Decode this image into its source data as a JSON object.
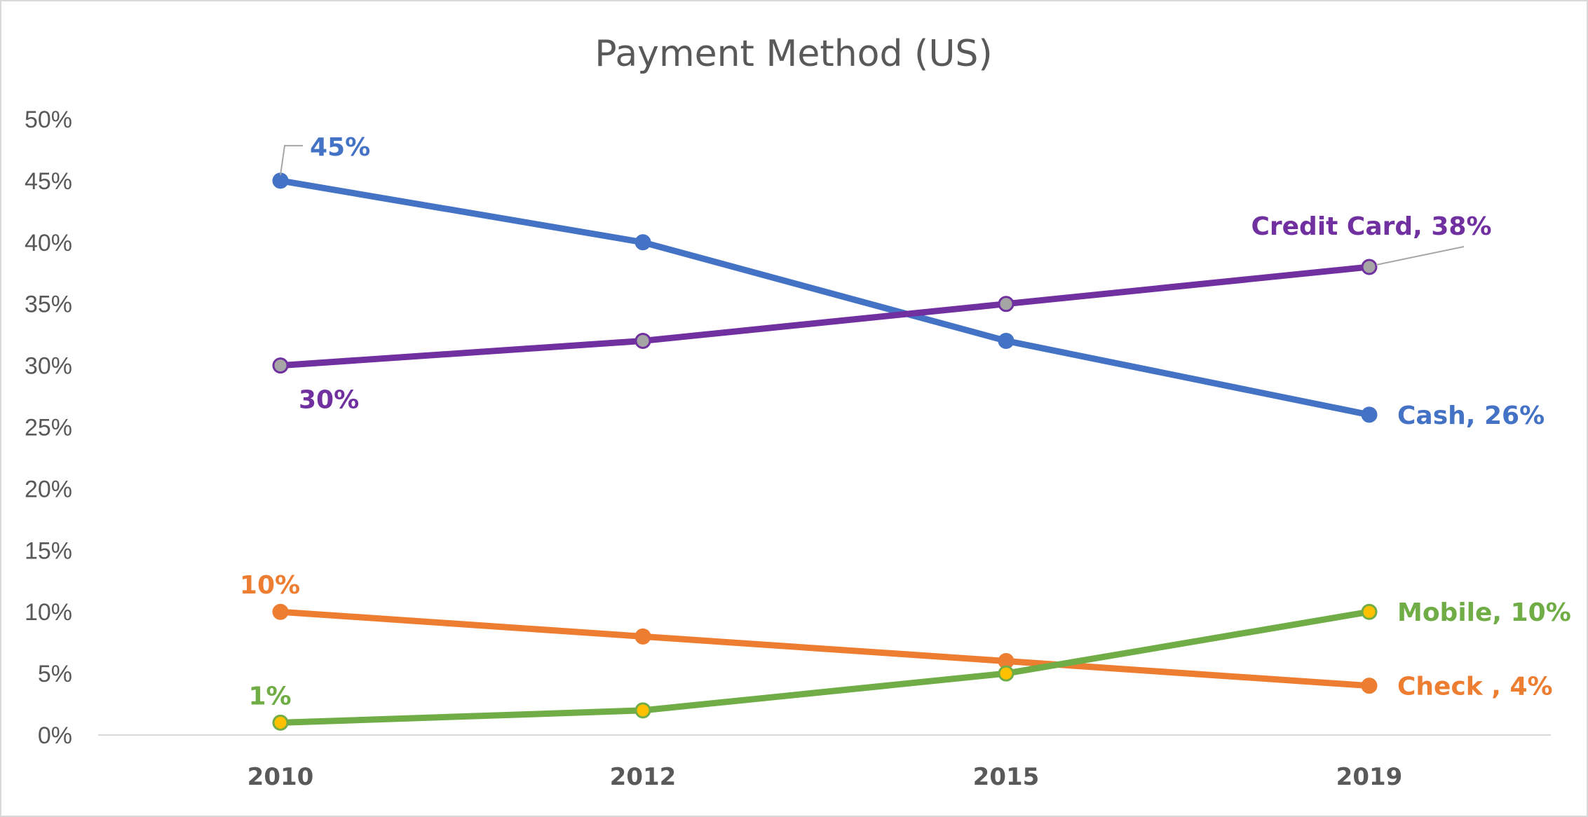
{
  "chart_data": {
    "type": "line",
    "title": "Payment Method (US)",
    "xlabel": "",
    "ylabel": "",
    "categories": [
      "2010",
      "2012",
      "2015",
      "2019"
    ],
    "ylim": [
      0,
      50
    ],
    "yticks": [
      0,
      5,
      10,
      15,
      20,
      25,
      30,
      35,
      40,
      45,
      50
    ],
    "ytick_labels": [
      "0%",
      "5%",
      "10%",
      "15%",
      "20%",
      "25%",
      "30%",
      "35%",
      "40%",
      "45%",
      "50%"
    ],
    "grid": false,
    "legend": "none",
    "series": [
      {
        "key": "cash",
        "values": [
          45,
          40,
          32,
          26
        ],
        "color": "#4472c4",
        "marker_fill": "#4472c4",
        "marker_stroke": "#4472c4",
        "labels": [
          {
            "index": 0,
            "text": "45%",
            "position": "above-right",
            "leader": true
          },
          {
            "index": 3,
            "text": "Cash, 26%",
            "position": "right"
          }
        ]
      },
      {
        "key": "credit-card",
        "values": [
          30,
          32,
          35,
          38
        ],
        "color": "#7030a0",
        "marker_fill": "#a5a5a5",
        "marker_stroke": "#7030a0",
        "labels": [
          {
            "index": 0,
            "text": "30%",
            "position": "below-right"
          },
          {
            "index": 3,
            "text": "Credit Card, 38%",
            "position": "above",
            "leader": true
          }
        ]
      },
      {
        "key": "check",
        "values": [
          10,
          8,
          6,
          4
        ],
        "color": "#ed7d31",
        "marker_fill": "#ed7d31",
        "marker_stroke": "#ed7d31",
        "labels": [
          {
            "index": 0,
            "text": "10%",
            "position": "above"
          },
          {
            "index": 3,
            "text": "Check , 4%",
            "position": "right"
          }
        ]
      },
      {
        "key": "mobile",
        "values": [
          1,
          2,
          5,
          10
        ],
        "color": "#70ad47",
        "marker_fill": "#ffc000",
        "marker_stroke": "#70ad47",
        "labels": [
          {
            "index": 0,
            "text": "1%",
            "position": "above"
          },
          {
            "index": 3,
            "text": "Mobile, 10%",
            "position": "right"
          }
        ]
      }
    ]
  }
}
